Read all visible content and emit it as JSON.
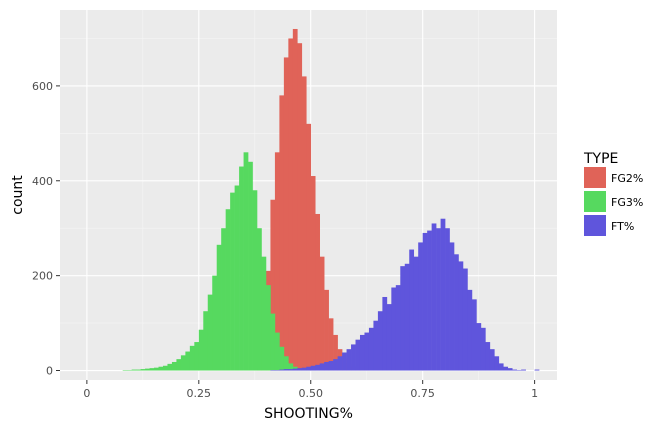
{
  "chart_data": {
    "type": "histogram",
    "xlabel": "SHOOTING%",
    "ylabel": "count",
    "xlim": [
      -0.06,
      1.05
    ],
    "ylim": [
      -20,
      760
    ],
    "x_ticks": [
      0,
      0.25,
      0.5,
      0.75,
      1
    ],
    "x_tick_labels": [
      "0",
      "0.25",
      "0.50",
      "0.75",
      "1"
    ],
    "y_ticks": [
      0,
      200,
      400,
      600
    ],
    "y_tick_labels": [
      "0",
      "200",
      "400",
      "600"
    ],
    "grid": true,
    "bin_width": 0.01,
    "bin_start": 0.0,
    "legend": {
      "title": "TYPE",
      "position": "right"
    },
    "series": [
      {
        "name": "FG2%",
        "color": "#E06358",
        "values": [
          0,
          0,
          0,
          0,
          0,
          0,
          0,
          0,
          0,
          0,
          0,
          0,
          0,
          0,
          0,
          0,
          0,
          0,
          0,
          0,
          0,
          0,
          0,
          0,
          0,
          0,
          0,
          0,
          0,
          0,
          0,
          0,
          0,
          0,
          0,
          0,
          0,
          0,
          5,
          10,
          210,
          360,
          460,
          580,
          660,
          700,
          720,
          690,
          620,
          520,
          410,
          330,
          240,
          170,
          110,
          75,
          45,
          25,
          15,
          8,
          3,
          2,
          1,
          0,
          0,
          0,
          0,
          0,
          0,
          0,
          0,
          0,
          0,
          0,
          0,
          0,
          0,
          0,
          0,
          0,
          0,
          0,
          0,
          0,
          0,
          0,
          0,
          0,
          0,
          0,
          0,
          0,
          0,
          0,
          0,
          0,
          0,
          0,
          0,
          0,
          0
        ]
      },
      {
        "name": "FG3%",
        "color": "#56D95F",
        "values": [
          0,
          0,
          0,
          0,
          0,
          0,
          0,
          0,
          1,
          1,
          2,
          2,
          3,
          4,
          5,
          6,
          8,
          10,
          14,
          18,
          24,
          32,
          40,
          52,
          60,
          86,
          125,
          160,
          200,
          265,
          300,
          340,
          375,
          390,
          430,
          460,
          440,
          380,
          300,
          240,
          180,
          120,
          80,
          50,
          30,
          15,
          8,
          4,
          2,
          1,
          1,
          0,
          0,
          0,
          0,
          0,
          0,
          0,
          0,
          0,
          0,
          0,
          0,
          0,
          0,
          0,
          0,
          0,
          0,
          0,
          0,
          0,
          0,
          0,
          0,
          0,
          0,
          0,
          0,
          0,
          0,
          0,
          0,
          0,
          0,
          0,
          0,
          0,
          0,
          0,
          0,
          0,
          0,
          0,
          0,
          0,
          0,
          0,
          0,
          0,
          0
        ]
      },
      {
        "name": "FT%",
        "color": "#5F55DC",
        "values": [
          0,
          0,
          0,
          0,
          0,
          0,
          0,
          0,
          0,
          0,
          0,
          0,
          0,
          0,
          0,
          0,
          0,
          0,
          0,
          0,
          0,
          0,
          0,
          0,
          0,
          0,
          0,
          0,
          0,
          0,
          0,
          0,
          0,
          0,
          0,
          0,
          0,
          0,
          0,
          0,
          0,
          1,
          1,
          2,
          3,
          3,
          4,
          5,
          6,
          8,
          10,
          12,
          15,
          18,
          20,
          24,
          30,
          38,
          45,
          55,
          65,
          75,
          80,
          90,
          105,
          125,
          155,
          140,
          175,
          180,
          220,
          225,
          255,
          240,
          270,
          290,
          295,
          310,
          300,
          320,
          300,
          270,
          245,
          230,
          215,
          170,
          150,
          100,
          90,
          60,
          45,
          30,
          15,
          8,
          5,
          2,
          1,
          2,
          0,
          0,
          2
        ]
      }
    ]
  }
}
